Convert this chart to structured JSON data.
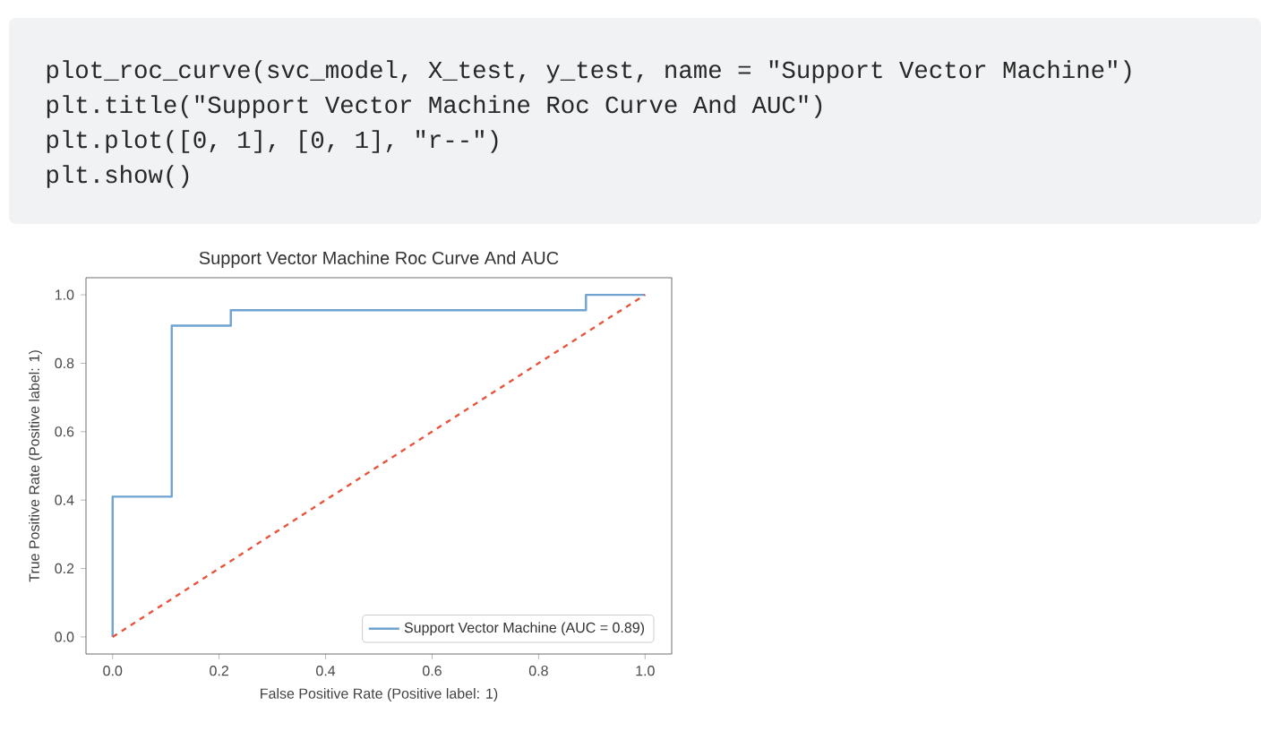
{
  "chart_data": {
    "type": "line",
    "title": "Support Vector Machine Roc Curve And AUC",
    "xlabel": "False Positive Rate (Positive label: 1)",
    "ylabel": "True Positive Rate (Positive label: 1)",
    "annotations": [
      "plot_roc_curve(svc_model, X_test, y_test, name = \"Support Vector Machine\")",
      "plt.title(\"Support Vector Machine Roc Curve And AUC\")",
      "plt.plot([0, 1], [0, 1], \"r--\")",
      "plt.show()"
    ],
    "xlim": [
      -0.05,
      1.05
    ],
    "ylim": [
      -0.05,
      1.05
    ],
    "xticks": [
      {
        "value": 0,
        "label": "0.0"
      },
      {
        "value": 0.2,
        "label": "0.2"
      },
      {
        "value": 0.4,
        "label": "0.4"
      },
      {
        "value": 0.6,
        "label": "0.6"
      },
      {
        "value": 0.8,
        "label": "0.8"
      },
      {
        "value": 1,
        "label": "1.0"
      }
    ],
    "yticks": [
      {
        "value": 0,
        "label": "0.0"
      },
      {
        "value": 0.2,
        "label": "0.2"
      },
      {
        "value": 0.4,
        "label": "0.4"
      },
      {
        "value": 0.6,
        "label": "0.6"
      },
      {
        "value": 0.8,
        "label": "0.8"
      },
      {
        "value": 1,
        "label": "1.0"
      }
    ],
    "legend": "bottom right",
    "series": [
      {
        "name": "Support Vector Machine (AUC = 0.89)",
        "color": "#6fa3d0",
        "line_style": "solid",
        "x": [
          0,
          0,
          0.111,
          0.111,
          0.222,
          0.222,
          0.889,
          0.889,
          1
        ],
        "values": [
          0,
          0.41,
          0.41,
          0.91,
          0.91,
          0.955,
          0.955,
          1,
          1
        ]
      },
      {
        "color": "#e8553c",
        "line_style": "dashed",
        "x": [
          0,
          1
        ],
        "values": [
          0,
          1
        ]
      }
    ]
  }
}
